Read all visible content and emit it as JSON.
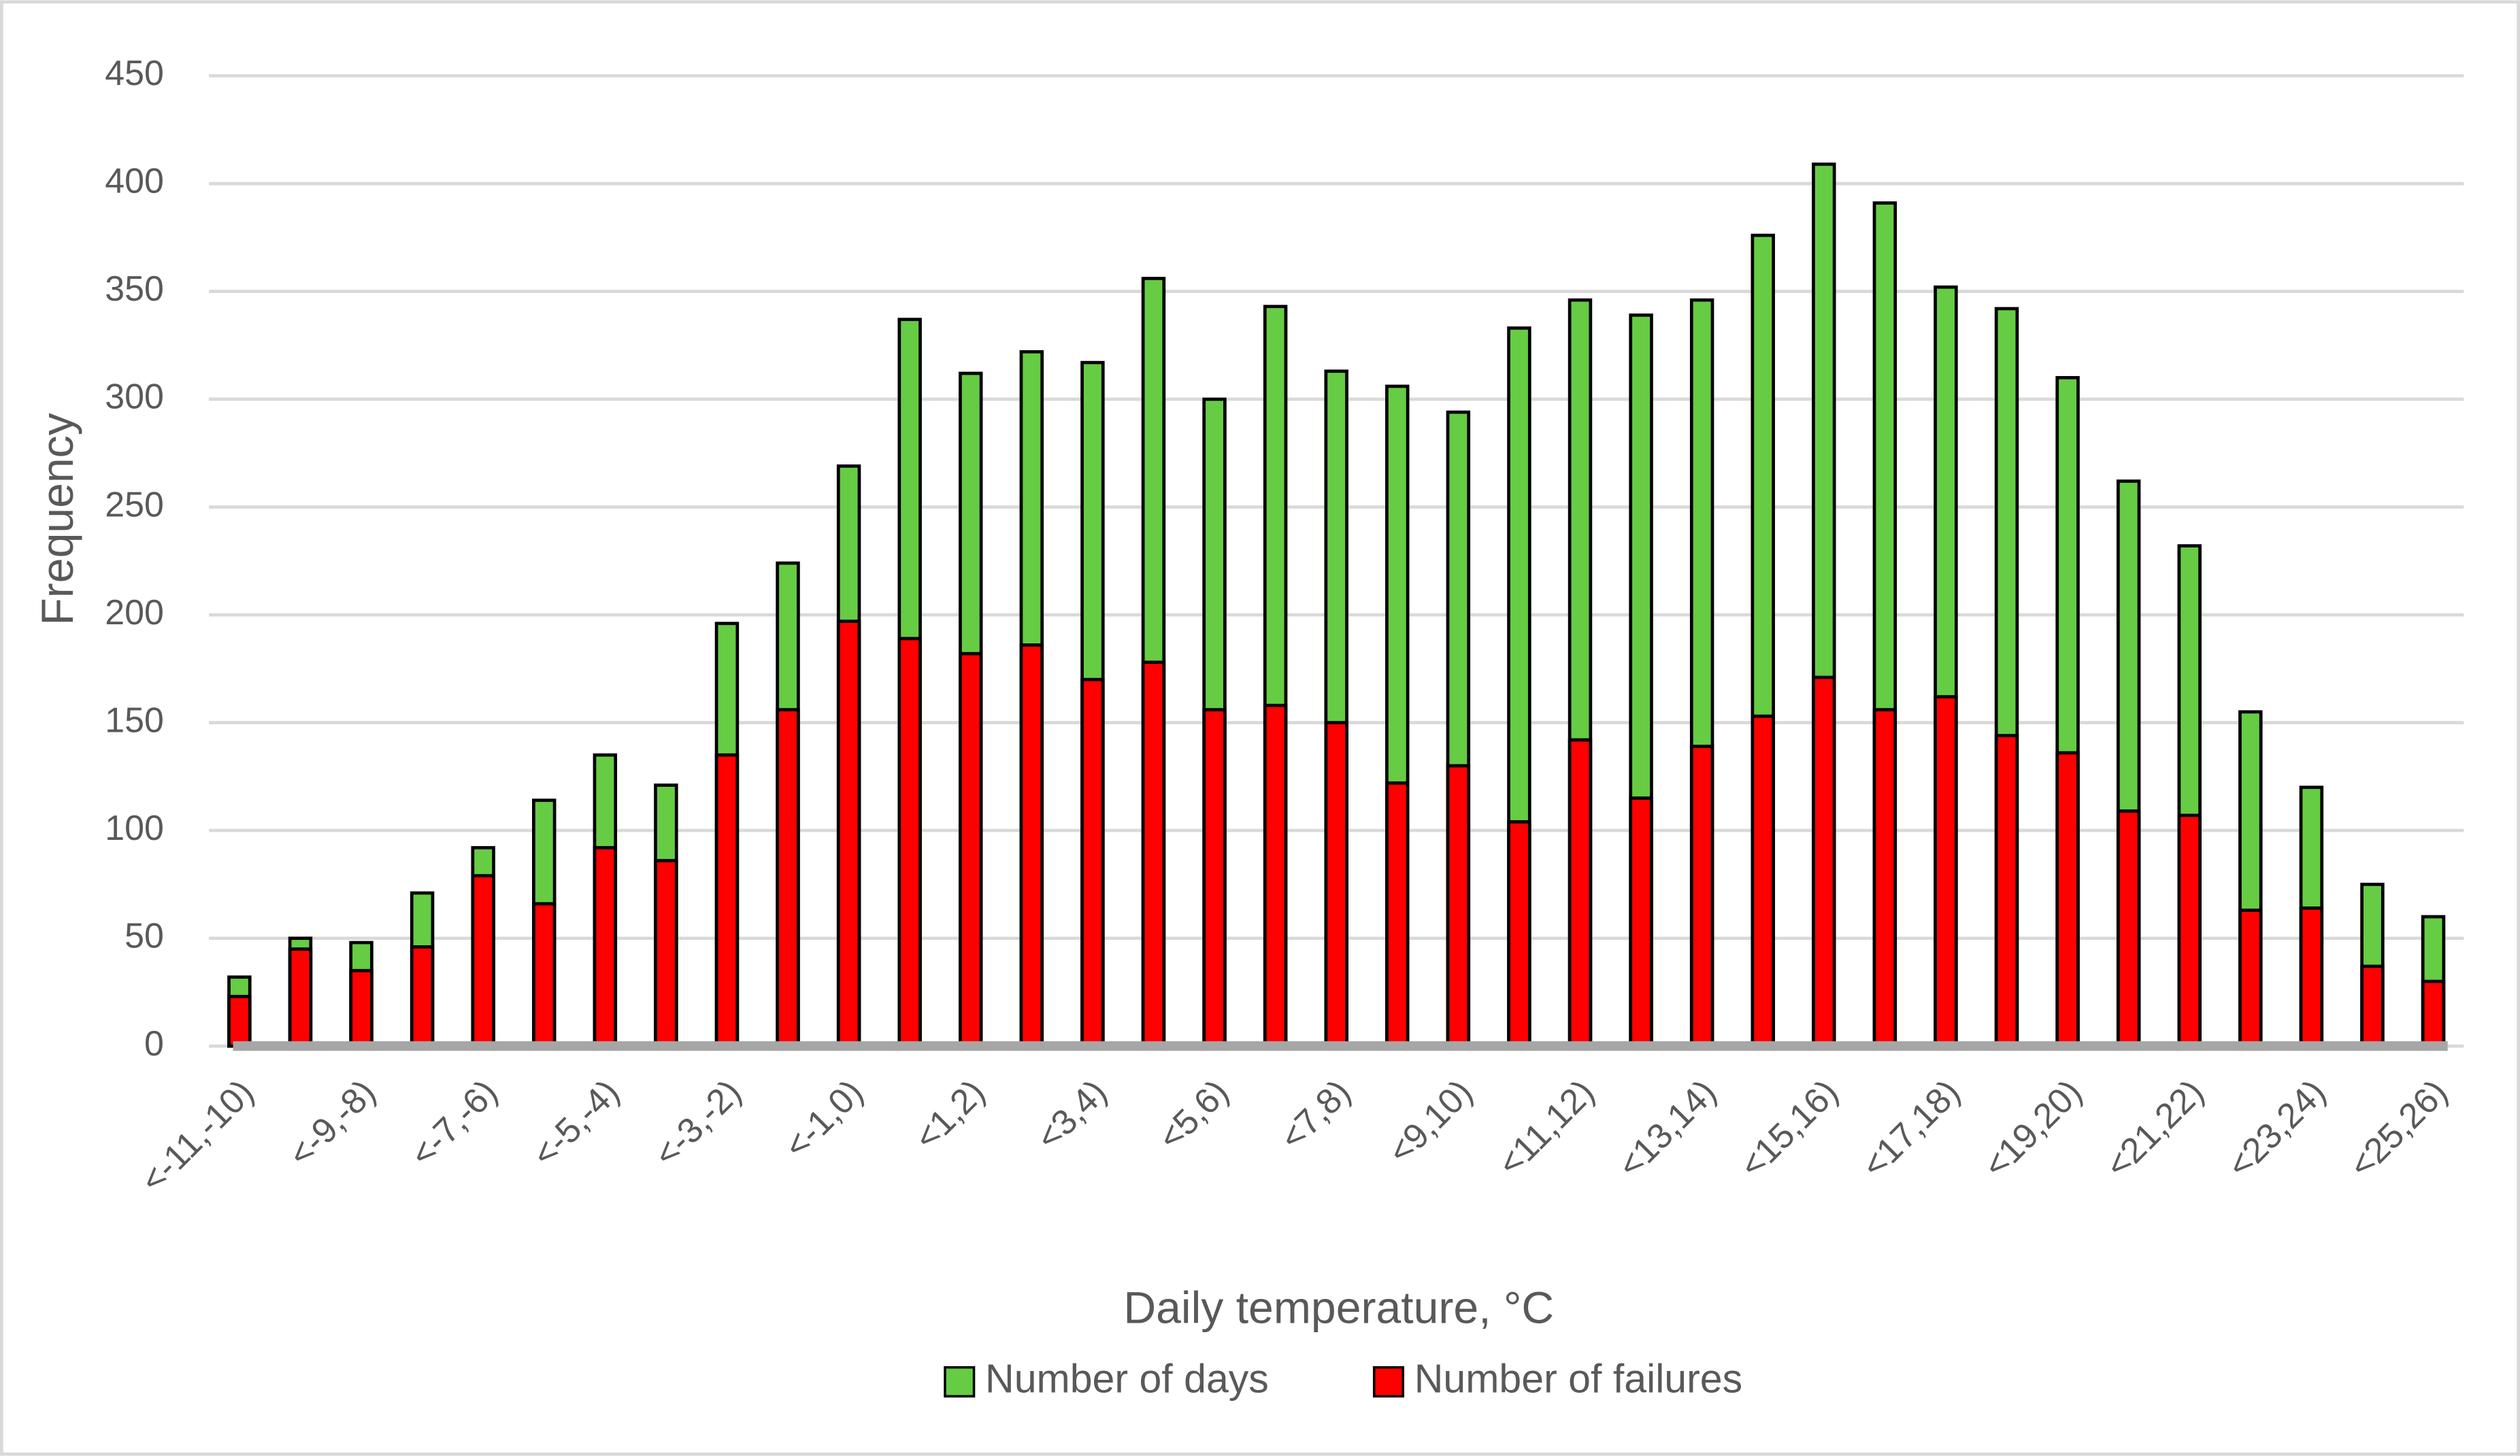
{
  "chart_data": {
    "type": "bar",
    "x_label": "Daily temperature, °C",
    "y_label": "Frequency",
    "categories": [
      "<-11,-10)",
      null,
      "<-9,-8)",
      null,
      "<-7,-6)",
      null,
      "<-5,-4)",
      null,
      "<-3,-2)",
      null,
      "<-1,0)",
      null,
      "<1,2)",
      null,
      "<3,4)",
      null,
      "<5,6)",
      null,
      "<7,8)",
      null,
      "<9,10)",
      null,
      "<11,12)",
      null,
      "<13,14)",
      null,
      "<15,16)",
      null,
      "<17,18)",
      null,
      "<19,20)",
      null,
      "<21,22)",
      null,
      "<23,24)",
      null,
      "<25,26)"
    ],
    "series": [
      {
        "name": "Number of days",
        "color": "#66cc44",
        "values": [
          32,
          50,
          48,
          71,
          92,
          114,
          135,
          121,
          196,
          224,
          269,
          337,
          312,
          322,
          317,
          356,
          300,
          343,
          313,
          306,
          294,
          333,
          346,
          339,
          346,
          376,
          409,
          391,
          352,
          342,
          310,
          262,
          232,
          155,
          120,
          75,
          60
        ]
      },
      {
        "name": "Number of failures",
        "color": "#ff0000",
        "values": [
          23,
          45,
          35,
          46,
          79,
          66,
          92,
          86,
          135,
          156,
          197,
          189,
          182,
          186,
          170,
          178,
          156,
          158,
          150,
          122,
          130,
          104,
          142,
          115,
          139,
          153,
          171,
          156,
          162,
          144,
          136,
          109,
          107,
          63,
          64,
          37,
          30
        ]
      }
    ],
    "ylim": [
      0,
      450
    ],
    "yticks": [
      0,
      50,
      100,
      150,
      200,
      250,
      300,
      350,
      400,
      450
    ],
    "grid": true,
    "legend": "bottom"
  }
}
